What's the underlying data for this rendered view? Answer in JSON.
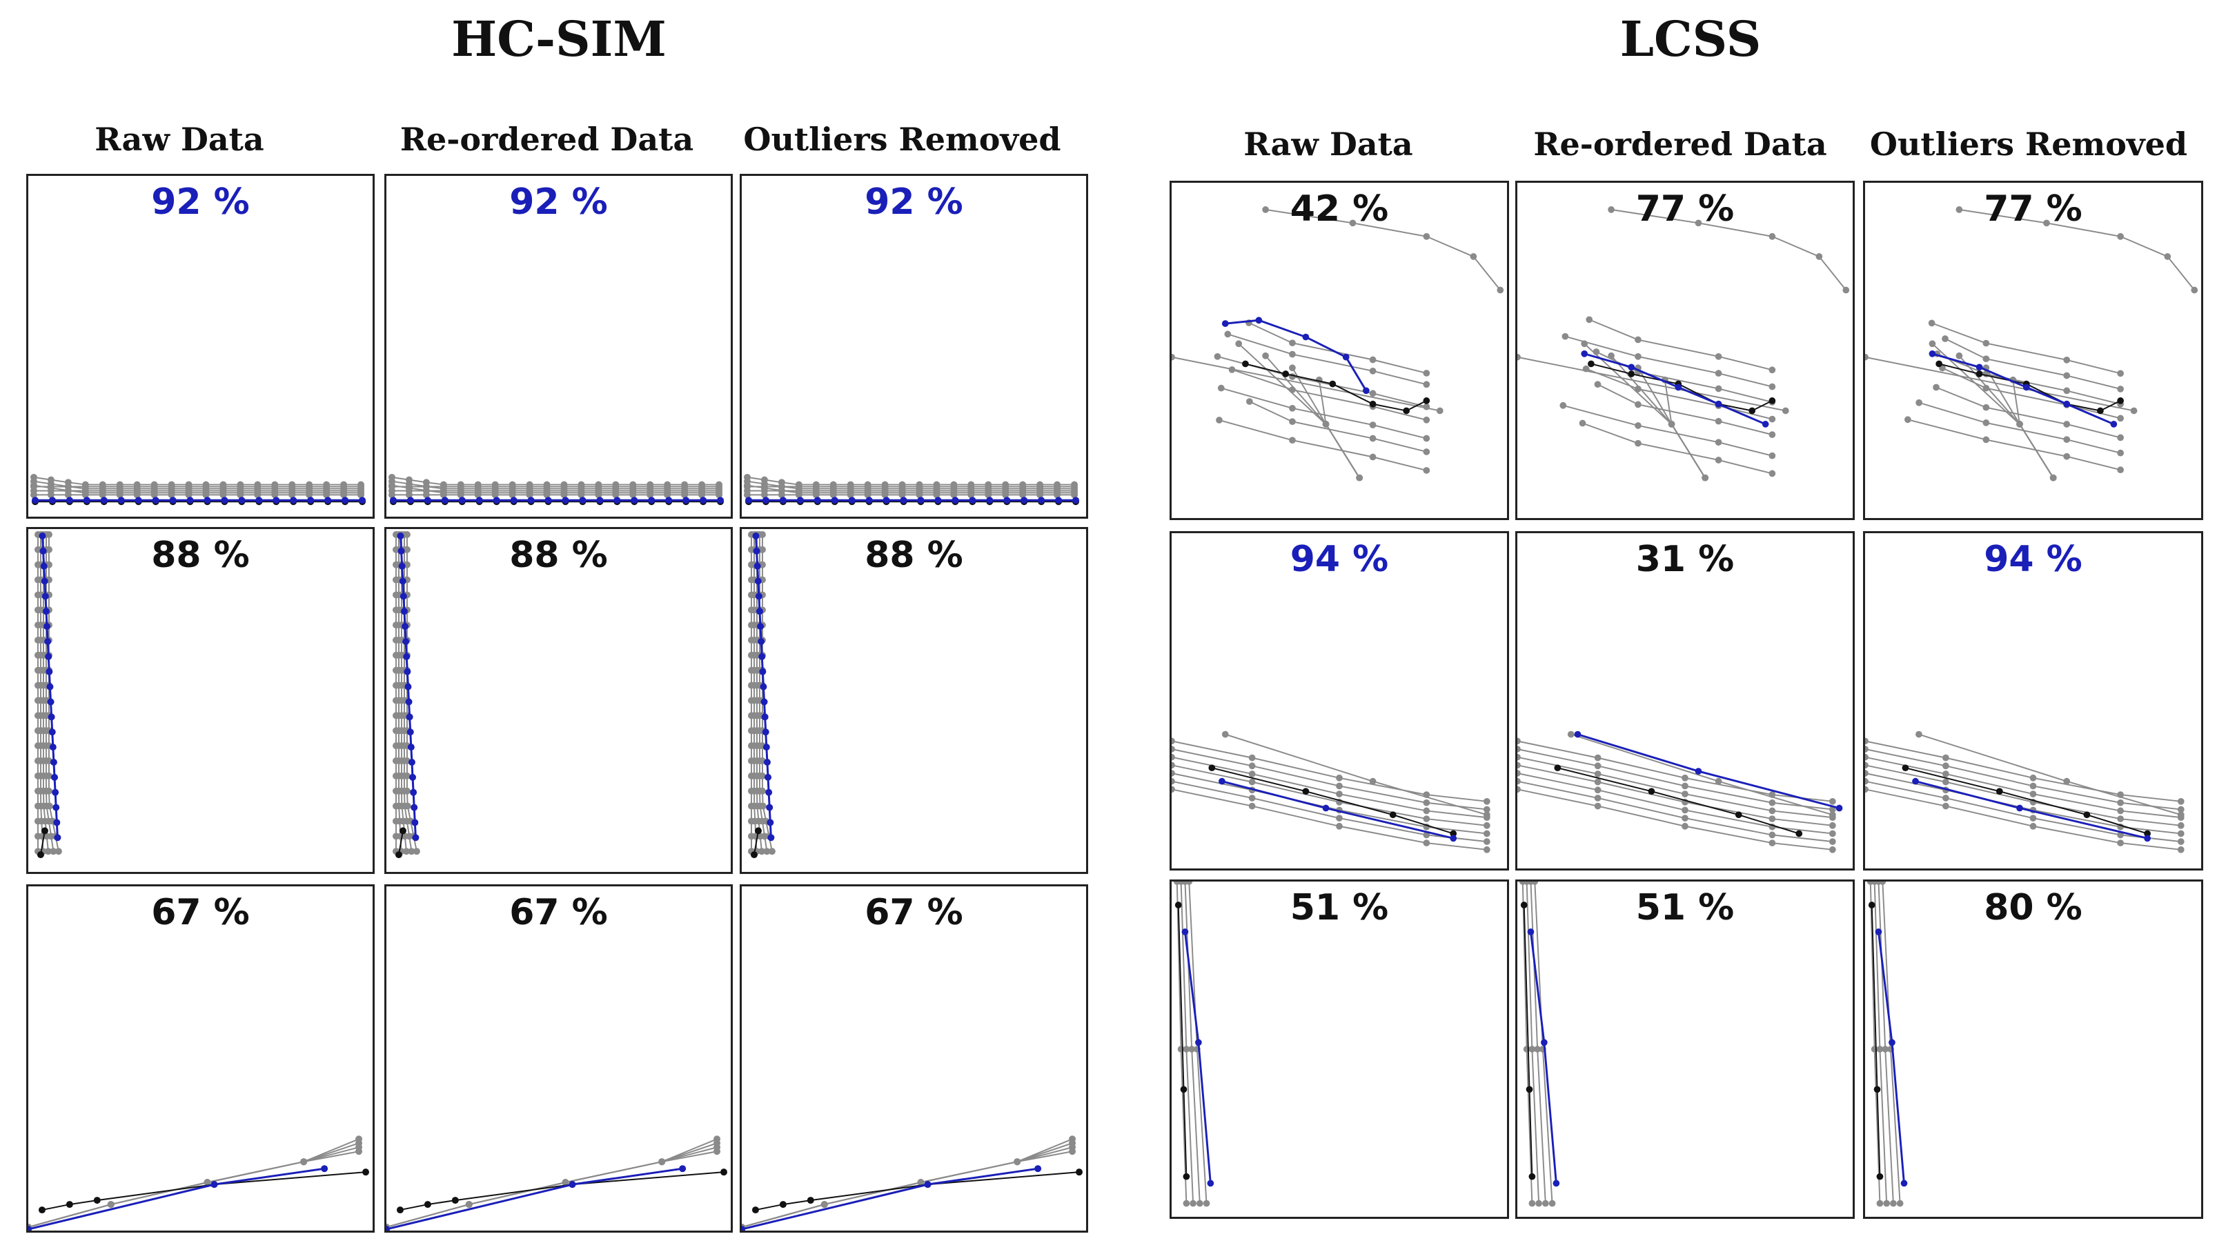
{
  "groups": [
    {
      "title": "HC-SIM",
      "columns": [
        "Raw Data",
        "Re-ordered Data",
        "Outliers Removed"
      ],
      "rows": [
        {
          "pattern": "flat-horizontal",
          "cells": [
            {
              "percent": "92 %",
              "highlight": true
            },
            {
              "percent": "92 %",
              "highlight": true
            },
            {
              "percent": "92 %",
              "highlight": true
            }
          ]
        },
        {
          "pattern": "left-vertical",
          "cells": [
            {
              "percent": "88 %",
              "highlight": false
            },
            {
              "percent": "88 %",
              "highlight": false
            },
            {
              "percent": "88 %",
              "highlight": false
            }
          ]
        },
        {
          "pattern": "rising-diagonal",
          "cells": [
            {
              "percent": "67 %",
              "highlight": false
            },
            {
              "percent": "67 %",
              "highlight": false
            },
            {
              "percent": "67 %",
              "highlight": false
            }
          ]
        }
      ]
    },
    {
      "title": "LCSS",
      "columns": [
        "Raw Data",
        "Re-ordered Data",
        "Outliers Removed"
      ],
      "rows": [
        {
          "pattern": "crossing-bundle",
          "cells": [
            {
              "percent": "42 %",
              "highlight": false
            },
            {
              "percent": "77 %",
              "highlight": false
            },
            {
              "percent": "77 %",
              "highlight": false
            }
          ]
        },
        {
          "pattern": "descending-bundle",
          "cells": [
            {
              "percent": "94 %",
              "highlight": true
            },
            {
              "percent": "31 %",
              "highlight": false
            },
            {
              "percent": "94 %",
              "highlight": true
            }
          ]
        },
        {
          "pattern": "vertical-bundle",
          "cells": [
            {
              "percent": "51 %",
              "highlight": false
            },
            {
              "percent": "51 %",
              "highlight": false
            },
            {
              "percent": "80 %",
              "highlight": false
            }
          ]
        }
      ]
    }
  ],
  "colors": {
    "highlight": "#1a1fb8",
    "gray": "#8a8a8a",
    "black": "#111111",
    "blue": "#1a1fb8"
  }
}
